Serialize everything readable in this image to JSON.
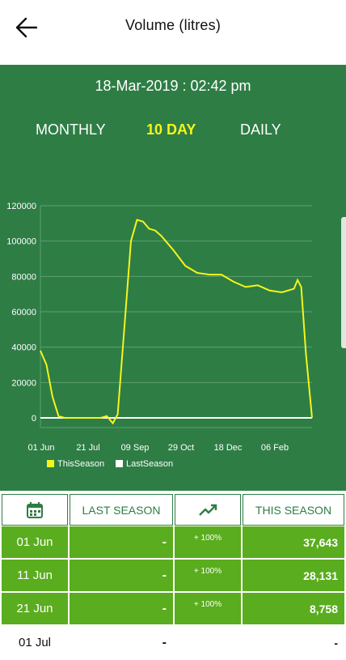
{
  "header": {
    "title": "Volume (litres)"
  },
  "datetime": "18-Mar-2019 : 02:42 pm",
  "tabs": [
    "MONTHLY",
    "10 DAY",
    "DAILY"
  ],
  "active_tab": "10 DAY",
  "colors": {
    "panel": "#2e7d45",
    "this_season": "#f5f51a",
    "last_season": "#ffffff",
    "row": "#5aad1e"
  },
  "chart_data": {
    "type": "line",
    "y_ticks": [
      "120000",
      "100000",
      "80000",
      "60000",
      "40000",
      "20000",
      "0"
    ],
    "ylim": [
      0,
      120000
    ],
    "x_ticks": [
      "01 Jun",
      "21 Jul",
      "09 Sep",
      "29 Oct",
      "18 Dec",
      "06 Feb"
    ],
    "series": [
      {
        "name": "ThisSeason",
        "points": [
          [
            0,
            38000
          ],
          [
            5,
            30000
          ],
          [
            10,
            12000
          ],
          [
            15,
            1000
          ],
          [
            20,
            0
          ],
          [
            30,
            0
          ],
          [
            40,
            0
          ],
          [
            50,
            0
          ],
          [
            55,
            1000
          ],
          [
            60,
            -3000
          ],
          [
            64,
            2000
          ],
          [
            70,
            55000
          ],
          [
            75,
            100000
          ],
          [
            80,
            112000
          ],
          [
            85,
            111000
          ],
          [
            90,
            107000
          ],
          [
            95,
            106000
          ],
          [
            100,
            103000
          ],
          [
            110,
            95000
          ],
          [
            120,
            86000
          ],
          [
            130,
            82000
          ],
          [
            140,
            81000
          ],
          [
            150,
            81000
          ],
          [
            160,
            77000
          ],
          [
            170,
            74000
          ],
          [
            180,
            75000
          ],
          [
            190,
            72000
          ],
          [
            200,
            71000
          ],
          [
            210,
            73000
          ],
          [
            213,
            78000
          ],
          [
            216,
            74000
          ],
          [
            220,
            36000
          ],
          [
            225,
            0
          ]
        ]
      },
      {
        "name": "LastSeason",
        "points": [
          [
            0,
            0
          ],
          [
            225,
            0
          ]
        ]
      }
    ],
    "legend": [
      "ThisSeason",
      "LastSeason"
    ]
  },
  "table": {
    "headers": {
      "calendar_icon": "calendar-icon",
      "last_season": "LAST SEASON",
      "trend_icon": "trend-up-icon",
      "this_season": "THIS SEASON"
    },
    "rows": [
      {
        "date": "01 Jun",
        "last": "-",
        "change": "+ 100%",
        "this": "37,643"
      },
      {
        "date": "11 Jun",
        "last": "-",
        "change": "+ 100%",
        "this": "28,131"
      },
      {
        "date": "21 Jun",
        "last": "-",
        "change": "+ 100%",
        "this": "8,758"
      },
      {
        "date": "01 Jul",
        "last": "-",
        "change": "",
        "this": "-"
      }
    ]
  }
}
